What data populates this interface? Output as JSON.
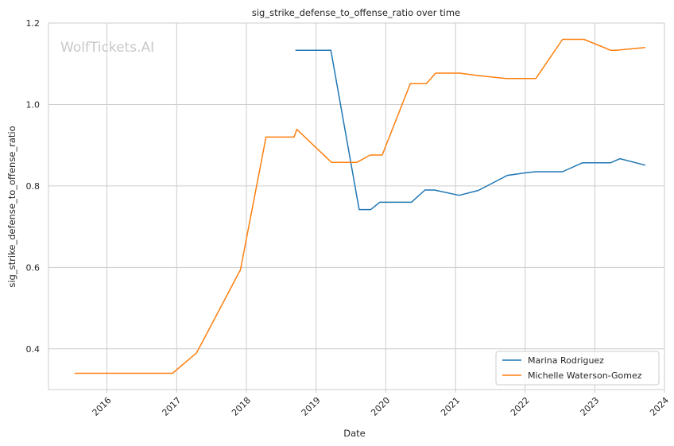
{
  "chart_data": {
    "type": "line",
    "title": "sig_strike_defense_to_offense_ratio over time",
    "xlabel": "Date",
    "ylabel": "sig_strike_defense_to_offense_ratio",
    "watermark": "WolfTickets.AI",
    "xlim": [
      "2015-03-01",
      "2024-01-01"
    ],
    "ylim": [
      0.3,
      1.2
    ],
    "xticks": [
      "2016",
      "2017",
      "2018",
      "2019",
      "2020",
      "2021",
      "2022",
      "2023",
      "2024"
    ],
    "yticks": [
      "0.4",
      "0.6",
      "0.8",
      "1.0",
      "1.2"
    ],
    "grid": true,
    "legend_position": "bottom-right",
    "series": [
      {
        "name": "Marina Rodriguez",
        "color": "#1f77b4",
        "points": [
          [
            "2018-09-15",
            1.133
          ],
          [
            "2019-03-20",
            1.133
          ],
          [
            "2019-08-15",
            0.742
          ],
          [
            "2019-10-15",
            0.742
          ],
          [
            "2019-12-01",
            0.76
          ],
          [
            "2020-05-15",
            0.76
          ],
          [
            "2020-07-25",
            0.79
          ],
          [
            "2020-09-12",
            0.79
          ],
          [
            "2021-01-20",
            0.777
          ],
          [
            "2021-05-01",
            0.789
          ],
          [
            "2021-09-30",
            0.826
          ],
          [
            "2022-01-15",
            0.833
          ],
          [
            "2022-02-25",
            0.835
          ],
          [
            "2022-07-16",
            0.835
          ],
          [
            "2022-10-29",
            0.857
          ],
          [
            "2023-03-25",
            0.857
          ],
          [
            "2023-05-13",
            0.867
          ],
          [
            "2023-09-23",
            0.851
          ]
        ]
      },
      {
        "name": "Michelle Waterson-Gomez",
        "color": "#ff7f0e",
        "points": [
          [
            "2015-07-15",
            0.34
          ],
          [
            "2016-12-10",
            0.34
          ],
          [
            "2017-04-15",
            0.39
          ],
          [
            "2017-12-01",
            0.594
          ],
          [
            "2018-04-14",
            0.92
          ],
          [
            "2018-09-08",
            0.92
          ],
          [
            "2018-09-22",
            0.939
          ],
          [
            "2019-03-23",
            0.858
          ],
          [
            "2019-08-03",
            0.858
          ],
          [
            "2019-10-12",
            0.876
          ],
          [
            "2019-12-14",
            0.876
          ],
          [
            "2020-05-09",
            1.051
          ],
          [
            "2020-08-01",
            1.051
          ],
          [
            "2020-09-19",
            1.077
          ],
          [
            "2021-01-23",
            1.077
          ],
          [
            "2021-05-01",
            1.071
          ],
          [
            "2021-09-25",
            1.064
          ],
          [
            "2022-02-26",
            1.064
          ],
          [
            "2022-07-16",
            1.16
          ],
          [
            "2022-11-05",
            1.16
          ],
          [
            "2023-03-25",
            1.133
          ],
          [
            "2023-04-22",
            1.133
          ],
          [
            "2023-09-23",
            1.14
          ]
        ]
      }
    ]
  }
}
